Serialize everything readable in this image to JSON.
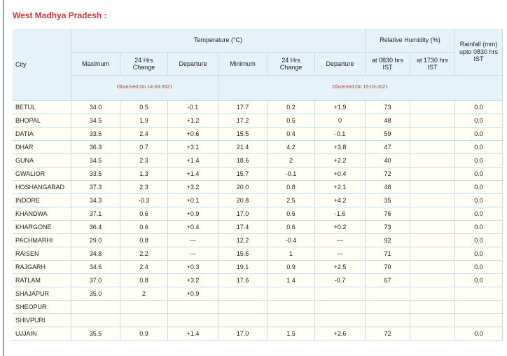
{
  "title": "West Madhya Pradesh :",
  "table": {
    "header": {
      "city": "City",
      "temperature": "Temperature (°C)",
      "temp_columns": [
        "Maximum",
        "24 Hrs Change",
        "Departure",
        "Minimum",
        "24 Hrs Change",
        "Departure"
      ],
      "humidity": "Relative Humidity (%)",
      "humidity_columns": [
        "at 0830 hrs IST",
        "at 1730 hrs IST"
      ],
      "rainfall": "Rainfall (mm) upto 0830 hrs IST",
      "observed": [
        "Observed On 14-03-2021",
        "Observed On 15-03-2021"
      ]
    },
    "rows": [
      [
        "BETUL",
        "34.0",
        "0.5",
        "-0.1",
        "17.7",
        "0.2",
        "+1.9",
        "73",
        null,
        "0.0"
      ],
      [
        "BHOPAL",
        "34.5",
        "1.9",
        "+1.2",
        "17.2",
        "0.5",
        "0",
        "48",
        null,
        "0.0"
      ],
      [
        "DATIA",
        "33.6",
        "2.4",
        "+0.6",
        "15.5",
        "0.4",
        "-0.1",
        "59",
        null,
        "0.0"
      ],
      [
        "DHAR",
        "36.3",
        "0.7",
        "+3.1",
        "21.4",
        "4.2",
        "+3.8",
        "47",
        null,
        "0.0"
      ],
      [
        "GUNA",
        "34.5",
        "2.3",
        "+1.4",
        "18.6",
        "2",
        "+2.2",
        "40",
        null,
        "0.0"
      ],
      [
        "GWALIOR",
        "33.5",
        "1.3",
        "+1.4",
        "15.7",
        "-0.1",
        "+0.4",
        "72",
        null,
        "0.0"
      ],
      [
        "HOSHANGABAD",
        "37.3",
        "2.3",
        "+3.2",
        "20.0",
        "0.8",
        "+2.1",
        "48",
        null,
        "0.0"
      ],
      [
        "INDORE",
        "34.3",
        "-0.3",
        "+0.1",
        "20.8",
        "2.5",
        "+4.2",
        "35",
        null,
        "0.0"
      ],
      [
        "KHANDWA",
        "37.1",
        "0.6",
        "+0.9",
        "17.0",
        "0.6",
        "-1.6",
        "76",
        null,
        "0.0"
      ],
      [
        "KHARGONE",
        "36.4",
        "0.6",
        "+0.4",
        "17.4",
        "0.6",
        "+0.2",
        "73",
        null,
        "0.0"
      ],
      [
        "PACHMARHI",
        "29.0",
        "0.8",
        "---",
        "12.2",
        "-0.4",
        "---",
        "92",
        null,
        "0.0"
      ],
      [
        "RAISEN",
        "34.8",
        "2.2",
        "---",
        "15.6",
        "1",
        "---",
        "71",
        null,
        "0.0"
      ],
      [
        "RAJGARH",
        "34.6",
        "2.4",
        "+0.3",
        "19.1",
        "0.9",
        "+2.5",
        "70",
        null,
        "0.0"
      ],
      [
        "RATLAM",
        "37.0",
        "0.8",
        "+3.2",
        "17.6",
        "1.4",
        "-0.7",
        "67",
        null,
        "0.0"
      ],
      [
        "SHAJAPUR",
        "35.0",
        "2",
        "+0.9",
        null,
        null,
        null,
        null,
        null,
        null
      ],
      [
        "SHEOPUR",
        null,
        null,
        null,
        null,
        null,
        null,
        null,
        null,
        null
      ],
      [
        "SHIVPURI",
        null,
        null,
        null,
        null,
        null,
        null,
        null,
        null,
        null
      ],
      [
        "UJJAIN",
        "35.5",
        "0.9",
        "+1.4",
        "17.0",
        "1.5",
        "+2.6",
        "72",
        null,
        "0.0"
      ]
    ]
  }
}
